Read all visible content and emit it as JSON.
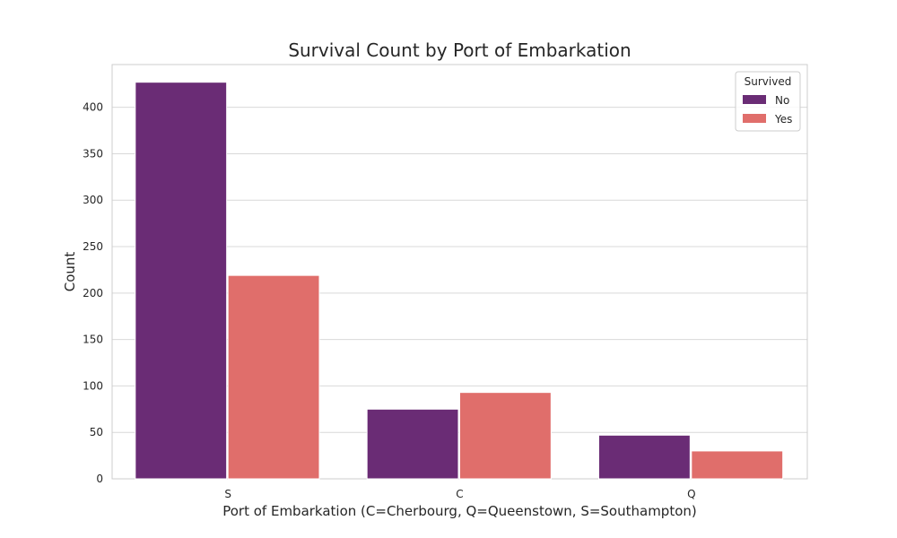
{
  "chart_data": {
    "type": "bar",
    "title": "Survival Count by Port of Embarkation",
    "xlabel": "Port of Embarkation (C=Cherbourg, Q=Queenstown, S=Southampton)",
    "ylabel": "Count",
    "categories": [
      "S",
      "C",
      "Q"
    ],
    "series": [
      {
        "name": "No",
        "values": [
          427,
          75,
          47
        ],
        "color": "#6a2c75"
      },
      {
        "name": "Yes",
        "values": [
          219,
          93,
          30
        ],
        "color": "#e06e6b"
      }
    ],
    "ylim": [
      0,
      446
    ],
    "yticks": [
      0,
      50,
      100,
      150,
      200,
      250,
      300,
      350,
      400
    ],
    "legend": {
      "title": "Survived",
      "placement": "top-right"
    },
    "grid": true
  }
}
